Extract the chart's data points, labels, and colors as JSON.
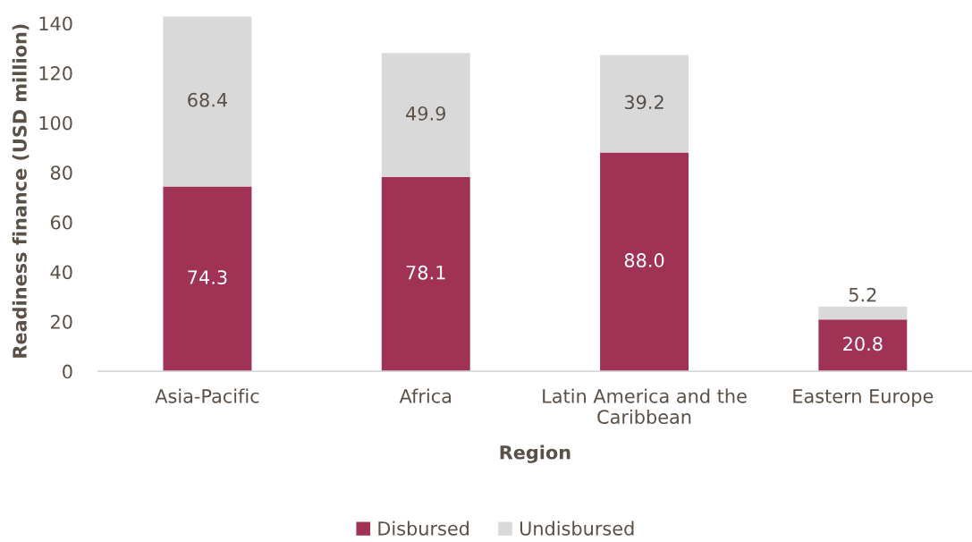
{
  "chart_data": {
    "type": "bar",
    "xlabel": "Region",
    "ylabel": "Readiness finance (USD million)",
    "categories": [
      "Asia-Pacific",
      "Africa",
      "Latin America and the Caribbean",
      "Eastern Europe"
    ],
    "series": [
      {
        "name": "Disbursed",
        "color": "#a03256",
        "values": [
          74.3,
          78.1,
          88.0,
          20.8
        ],
        "value_labels": [
          "74.3",
          "78.1",
          "88.0",
          "20.8"
        ]
      },
      {
        "name": "Undisbursed",
        "color": "#d9d9d9",
        "values": [
          68.4,
          49.9,
          39.2,
          5.2
        ],
        "value_labels": [
          "68.4",
          "49.9",
          "39.2",
          "5.2"
        ]
      }
    ],
    "stacked": true,
    "ylim": [
      0,
      145
    ],
    "yticks": [
      0,
      20,
      40,
      60,
      80,
      100,
      120,
      140
    ],
    "legend": "bottom",
    "grid": false
  }
}
